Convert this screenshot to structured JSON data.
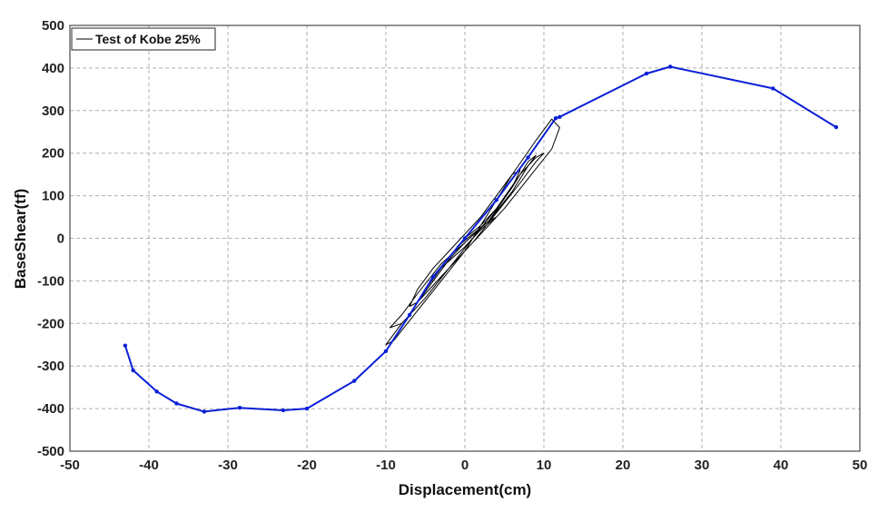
{
  "chart_data": {
    "type": "line",
    "xlabel": "Displacement(cm)",
    "ylabel": "BaseShear(tf)",
    "xlim": [
      -50,
      50
    ],
    "ylim": [
      -500,
      500
    ],
    "xticks": [
      -50,
      -40,
      -30,
      -20,
      -10,
      0,
      10,
      20,
      30,
      40,
      50
    ],
    "yticks": [
      500,
      400,
      300,
      200,
      100,
      0,
      -100,
      -200,
      -300,
      -400,
      -500
    ],
    "grid": true,
    "legend": {
      "position": "top-left",
      "entries": [
        "Test of Kobe 25%"
      ]
    },
    "colors": {
      "test": "#000000",
      "pushover": "#0a1fd6",
      "grid": "#b0b0b0"
    },
    "series": [
      {
        "name": "Test of Kobe 25%",
        "style": "hysteresis-loops",
        "x": [
          0,
          2,
          4,
          6,
          7,
          6,
          4,
          2,
          0,
          -2,
          -4,
          -6,
          -7,
          -6,
          -4,
          -2,
          0,
          3,
          6,
          8,
          9,
          8,
          6,
          3,
          0,
          -3,
          -6,
          -8,
          -9.5,
          -8,
          -5,
          -2,
          1,
          4,
          7,
          9,
          10,
          9,
          7,
          4,
          1,
          -2,
          -5,
          -8,
          -10,
          -9,
          -6,
          -3,
          0,
          3,
          6,
          9,
          11,
          12,
          11,
          8,
          5,
          2,
          -1,
          -4,
          -6,
          -5,
          -3,
          0,
          2,
          4,
          3,
          1,
          -1,
          0
        ],
        "y": [
          0,
          30,
          70,
          120,
          160,
          150,
          100,
          50,
          10,
          -30,
          -70,
          -120,
          -160,
          -150,
          -100,
          -50,
          -10,
          40,
          120,
          180,
          195,
          170,
          110,
          40,
          -10,
          -60,
          -130,
          -180,
          -210,
          -200,
          -140,
          -70,
          0,
          70,
          150,
          190,
          200,
          180,
          130,
          60,
          -10,
          -70,
          -140,
          -200,
          -250,
          -240,
          -170,
          -100,
          -30,
          60,
          150,
          230,
          280,
          260,
          210,
          140,
          70,
          10,
          -50,
          -110,
          -150,
          -120,
          -70,
          -20,
          20,
          50,
          40,
          10,
          -20,
          0
        ]
      },
      {
        "name": "",
        "style": "polyline-with-markers",
        "x": [
          -43,
          -42,
          -39,
          -36.5,
          -33,
          -28.5,
          -23,
          -20,
          -14,
          -10,
          -7,
          -4,
          0,
          4,
          8,
          11.5,
          12,
          23,
          26,
          39,
          47
        ],
        "y": [
          -252,
          -310,
          -360,
          -388,
          -407,
          -398,
          -404,
          -400,
          -335,
          -265,
          -180,
          -90,
          0,
          90,
          190,
          282,
          285,
          387,
          403,
          352,
          261
        ]
      }
    ]
  }
}
